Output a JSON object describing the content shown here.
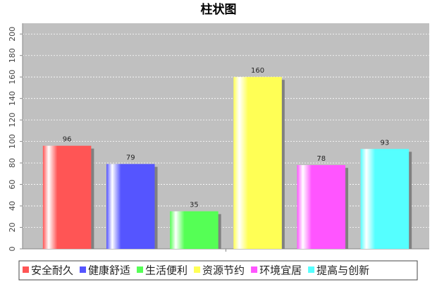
{
  "chart_data": {
    "type": "bar",
    "title": "柱状图",
    "categories": [
      null
    ],
    "series": [
      {
        "name": "安全耐久",
        "color": "#ff5555",
        "values": [
          96
        ]
      },
      {
        "name": "健康舒适",
        "color": "#5555ff",
        "values": [
          79
        ]
      },
      {
        "name": "生活便利",
        "color": "#55ff55",
        "values": [
          35
        ]
      },
      {
        "name": "资源节约",
        "color": "#ffff55",
        "values": [
          160
        ]
      },
      {
        "name": "环境宜居",
        "color": "#ff55ff",
        "values": [
          78
        ]
      },
      {
        "name": "提高与创新",
        "color": "#55ffff",
        "values": [
          93
        ]
      }
    ],
    "ylim": [
      0,
      210
    ],
    "yticks": [
      0,
      20,
      40,
      60,
      80,
      100,
      120,
      140,
      160,
      180,
      200
    ],
    "grid": true,
    "legend": "bottom"
  }
}
